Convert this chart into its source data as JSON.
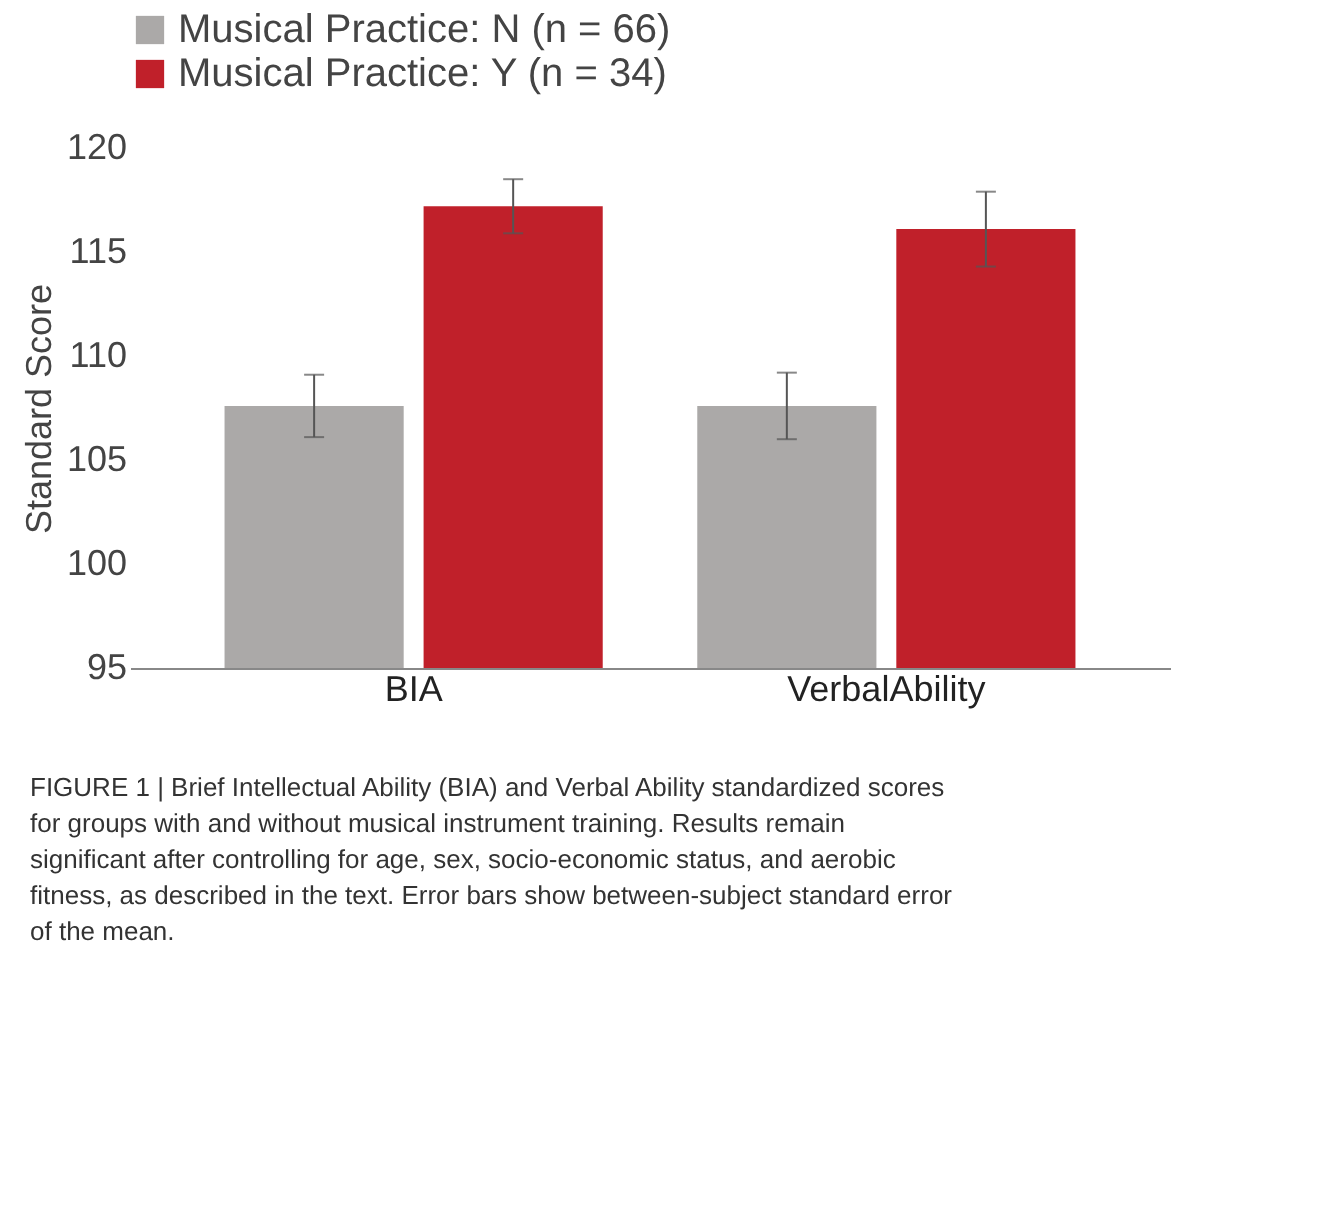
{
  "chart_data": {
    "type": "bar",
    "categories": [
      "BIA",
      "VerbalAbility"
    ],
    "ylabel": "Standard Score",
    "ylim": [
      95,
      120
    ],
    "yticks": [
      95,
      100,
      105,
      110,
      115,
      120
    ],
    "grid": false,
    "legend": "top",
    "series": [
      {
        "name": "Musical Practice: N (n = 66)",
        "color": "#aba9a8",
        "values": [
          107.6,
          107.6
        ],
        "errors": [
          1.5,
          1.6
        ]
      },
      {
        "name": "Musical Practice: Y (n = 34)",
        "color": "#c0202a",
        "values": [
          117.2,
          116.1
        ],
        "errors": [
          1.3,
          1.8
        ]
      }
    ],
    "annotations": [
      "FIGURE 1 | Brief Intellectual Ability (BIA) and Verbal Ability standardized scores for groups with and without musical instrument training. Results remain significant after controlling for age, sex, socio-economic status, and aerobic fitness, as described in the text. Error bars show between-subject standard error of the mean."
    ]
  }
}
